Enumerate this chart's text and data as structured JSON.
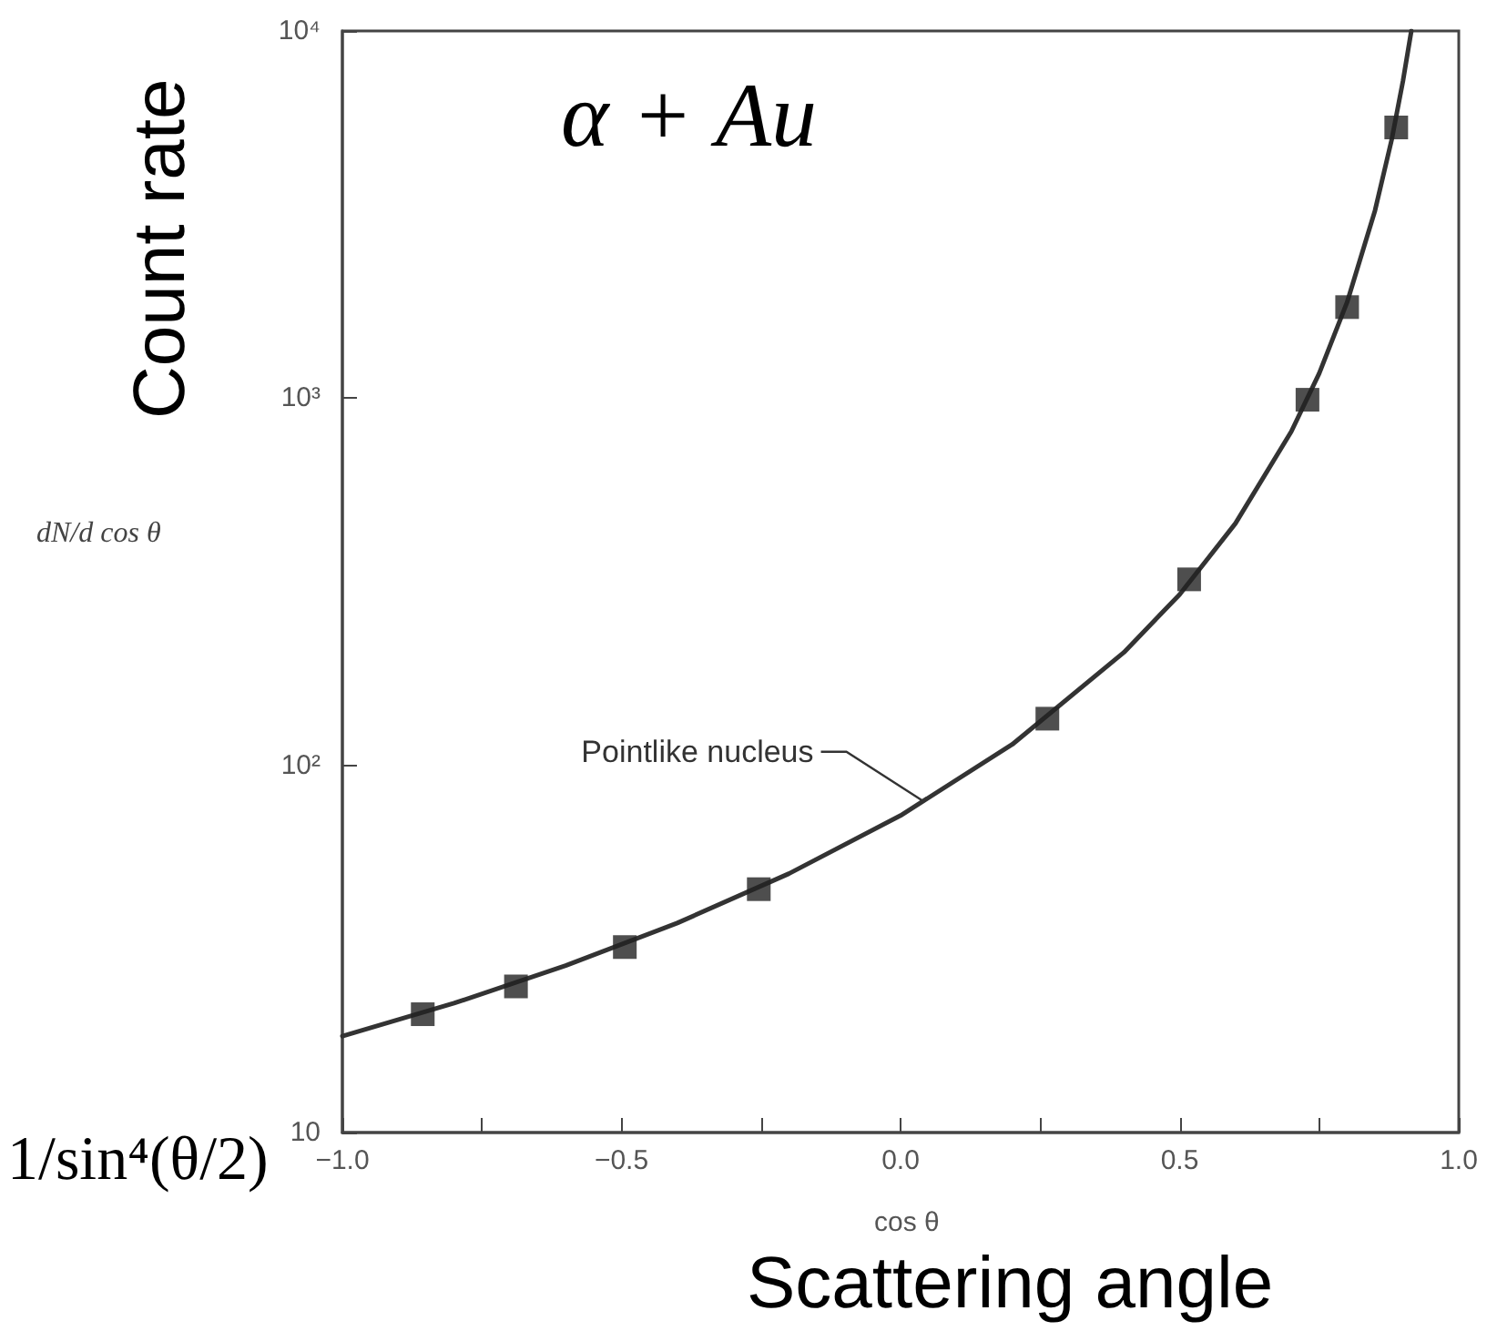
{
  "chart_data": {
    "type": "scatter",
    "xlabel": "cos θ",
    "ylabel": "dN/d cos θ",
    "annotations": [
      "α + Au",
      {
        "text": "Pointlike nucleus",
        "x": 0.04,
        "y": 80
      },
      "Count rate",
      "Scattering angle",
      "1/sin⁴(θ/2)"
    ],
    "series": [
      {
        "color": "#222222",
        "marker": "square",
        "x": [
          -0.856,
          -0.689,
          -0.494,
          -0.254,
          0.263,
          0.517,
          0.729,
          0.8,
          0.888
        ],
        "values": [
          21,
          25,
          32,
          46,
          134,
          321,
          990,
          1770,
          5460
        ]
      },
      {
        "type": "line",
        "color": "#333333",
        "marker": "none",
        "line_style": "solid",
        "x": [
          -1,
          -0.8,
          -0.6,
          -0.4,
          -0.2,
          0,
          0.2,
          0.4,
          0.5,
          0.6,
          0.7,
          0.75,
          0.8,
          0.85,
          0.88,
          0.9,
          0.915
        ],
        "values": [
          18.3,
          22.5,
          28.5,
          37.2,
          50.7,
          73,
          114,
          203,
          292,
          456,
          811,
          1168,
          1825,
          3244,
          5069,
          7300,
          10000
        ]
      }
    ],
    "xlim": [
      -1,
      1
    ],
    "xticks": [
      {
        "value": -1,
        "label": "−1.0"
      },
      {
        "value": -0.75,
        "label": null
      },
      {
        "value": -0.5,
        "label": "−0.5"
      },
      {
        "value": -0.25,
        "label": null
      },
      {
        "value": 0,
        "label": "0.0"
      },
      {
        "value": 0.25,
        "label": null
      },
      {
        "value": 0.5,
        "label": "0.5"
      },
      {
        "value": 0.75,
        "label": null
      },
      {
        "value": 1,
        "label": "1.0"
      }
    ],
    "ylim": [
      10,
      10000
    ],
    "yticks": [
      {
        "value": 10,
        "label": "10"
      },
      {
        "value": 100,
        "label": "10²"
      },
      {
        "value": 1000,
        "label": "10³"
      },
      {
        "value": 10000,
        "label": "10⁴"
      }
    ],
    "log": "y",
    "grid": false
  }
}
